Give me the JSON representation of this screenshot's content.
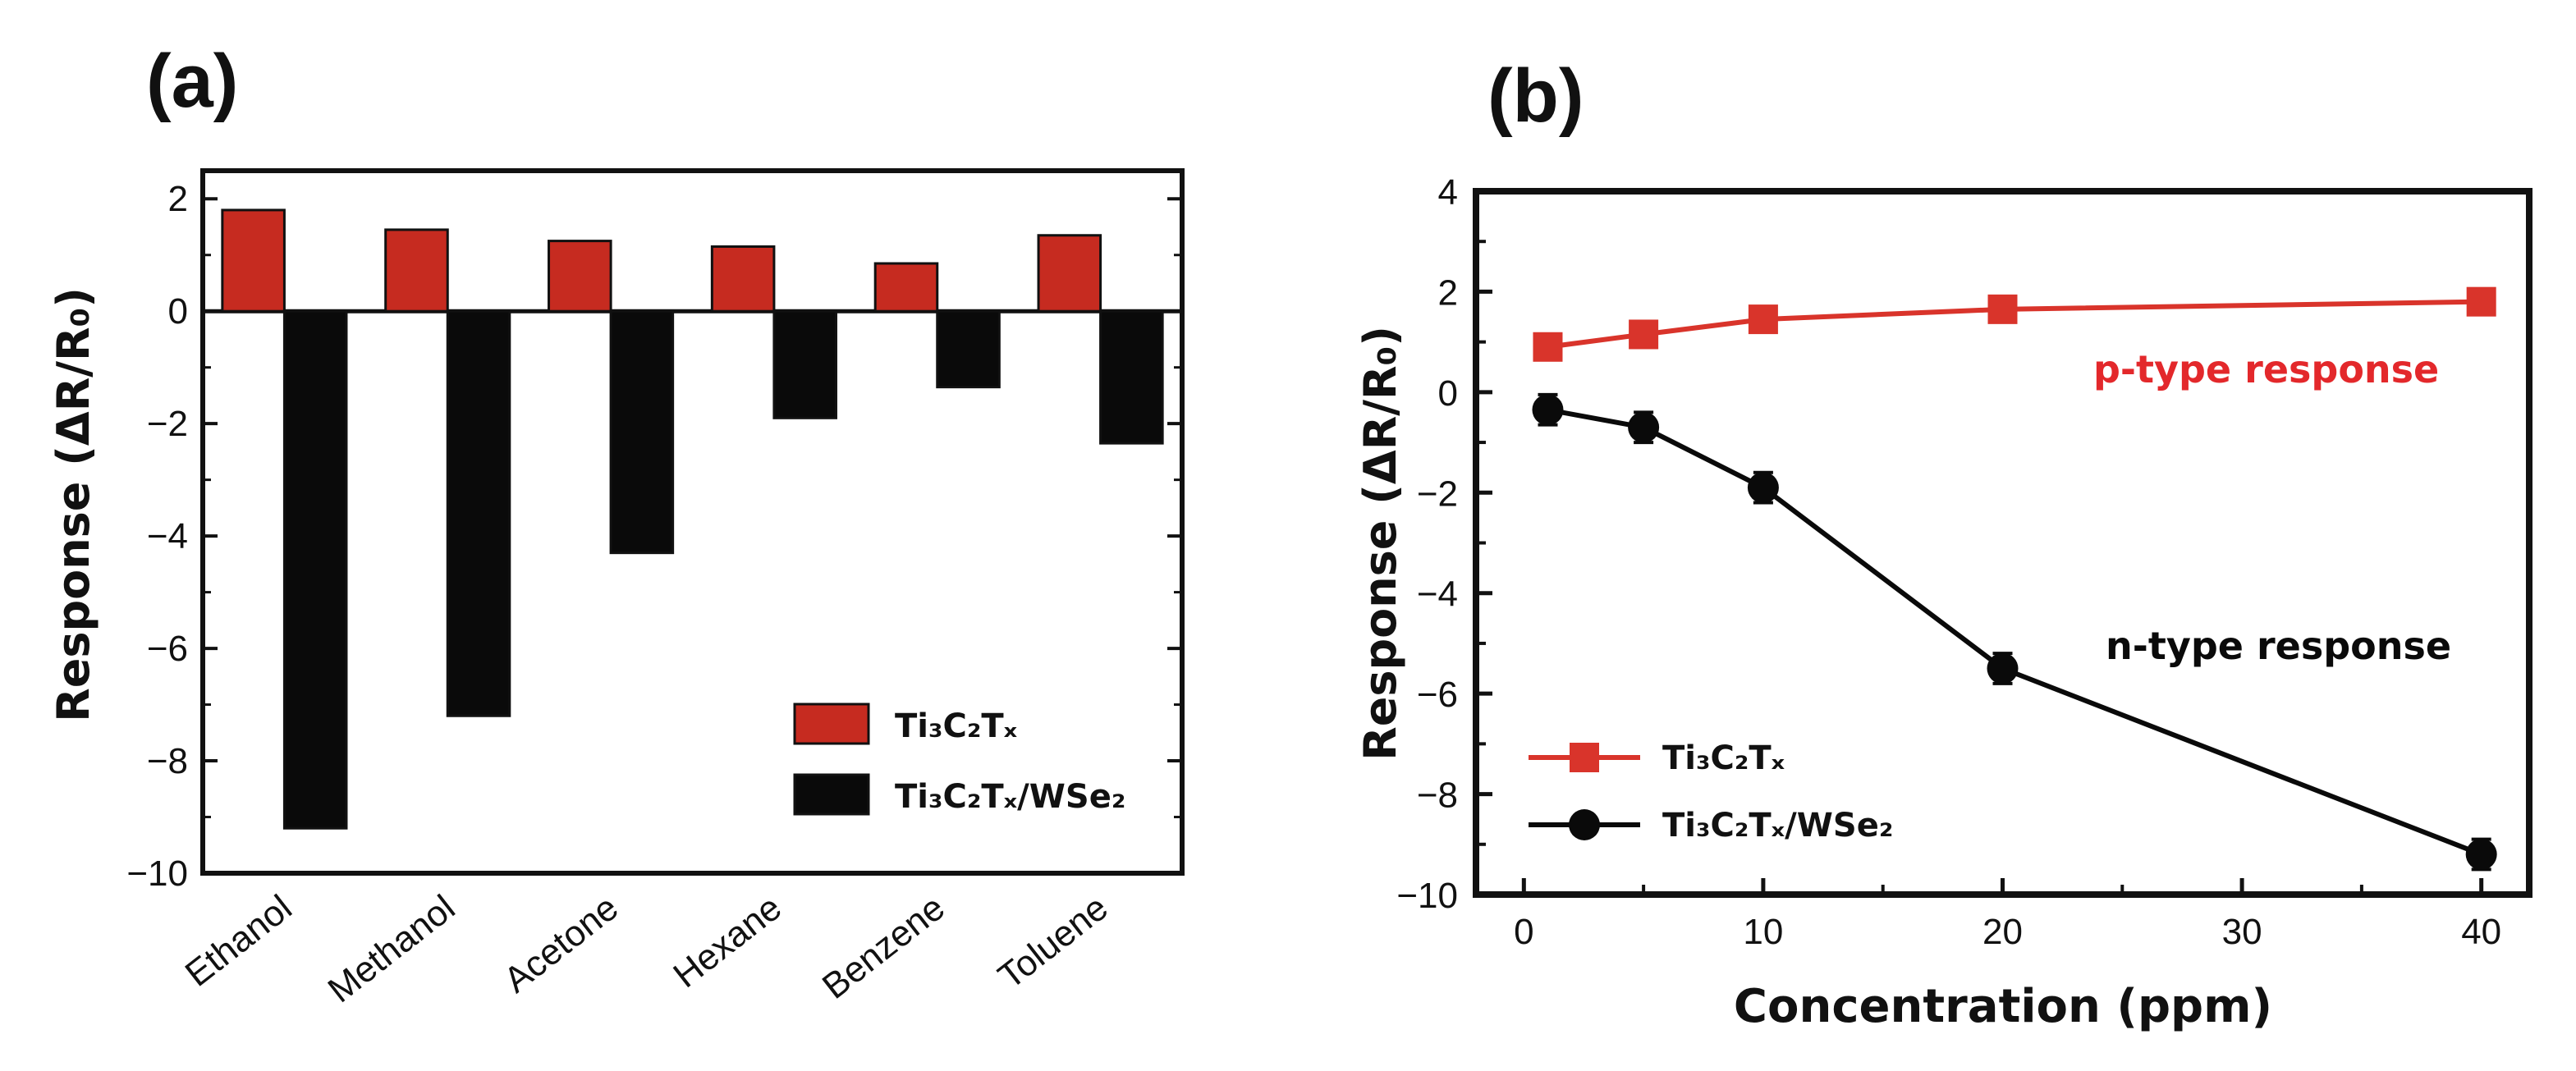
{
  "panels": {
    "a_label": "(a)",
    "b_label": "(b)"
  },
  "colors": {
    "red": "#c62b20",
    "red_line": "#d9342b",
    "black": "#0a0a0a",
    "anno_red": "#e3282b"
  },
  "chart_data": [
    {
      "id": "a",
      "type": "bar",
      "title": "",
      "xlabel": "",
      "ylabel": "Response (ΔR/R₀)",
      "ylim": [
        -10,
        2.5
      ],
      "yticks": [
        2,
        0,
        -2,
        -4,
        -6,
        -8,
        -10
      ],
      "ytick_labels": [
        "2",
        "0",
        "−2",
        "−4",
        "−6",
        "−8",
        "−10"
      ],
      "categories": [
        "Ethanol",
        "Methanol",
        "Acetone",
        "Hexane",
        "Benzene",
        "Toluene"
      ],
      "series": [
        {
          "name": "Ti₃C₂Tₓ",
          "color": "#c62b20",
          "values": [
            1.8,
            1.45,
            1.25,
            1.15,
            0.85,
            1.35
          ]
        },
        {
          "name": "Ti₃C₂Tₓ/WSe₂",
          "color": "#0a0a0a",
          "values": [
            -9.2,
            -7.2,
            -4.3,
            -1.9,
            -1.35,
            -2.35
          ]
        }
      ],
      "legend_position": "lower-right",
      "grid": false
    },
    {
      "id": "b",
      "type": "line",
      "title": "",
      "xlabel": "Concentration (ppm)",
      "ylabel": "Response (ΔR/R₀)",
      "xlim": [
        -2,
        42
      ],
      "ylim": [
        -10,
        4
      ],
      "xticks": [
        0,
        10,
        20,
        30,
        40
      ],
      "xtick_labels": [
        "0",
        "10",
        "20",
        "30",
        "40"
      ],
      "yticks": [
        4,
        2,
        0,
        -2,
        -4,
        -6,
        -8,
        -10
      ],
      "ytick_labels": [
        "4",
        "2",
        "0",
        "−2",
        "−4",
        "−6",
        "−8",
        "−10"
      ],
      "x": [
        1,
        5,
        10,
        20,
        40
      ],
      "series": [
        {
          "name": "Ti₃C₂Tₓ",
          "marker": "square",
          "color": "#d9342b",
          "values": [
            0.9,
            1.15,
            1.45,
            1.65,
            1.8
          ],
          "errors": [
            0.25,
            0.25,
            0.25,
            0.2,
            0.25
          ]
        },
        {
          "name": "Ti₃C₂Tₓ/WSe₂",
          "marker": "circle",
          "color": "#0a0a0a",
          "values": [
            -0.35,
            -0.7,
            -1.9,
            -5.5,
            -9.2
          ],
          "errors": [
            0.3,
            0.3,
            0.3,
            0.3,
            0.3
          ]
        }
      ],
      "annotations": [
        {
          "text": "p-type response",
          "color": "#e3282b"
        },
        {
          "text": "n-type response",
          "color": "#0a0a0a"
        }
      ],
      "legend_position": "lower-left",
      "grid": false
    }
  ]
}
